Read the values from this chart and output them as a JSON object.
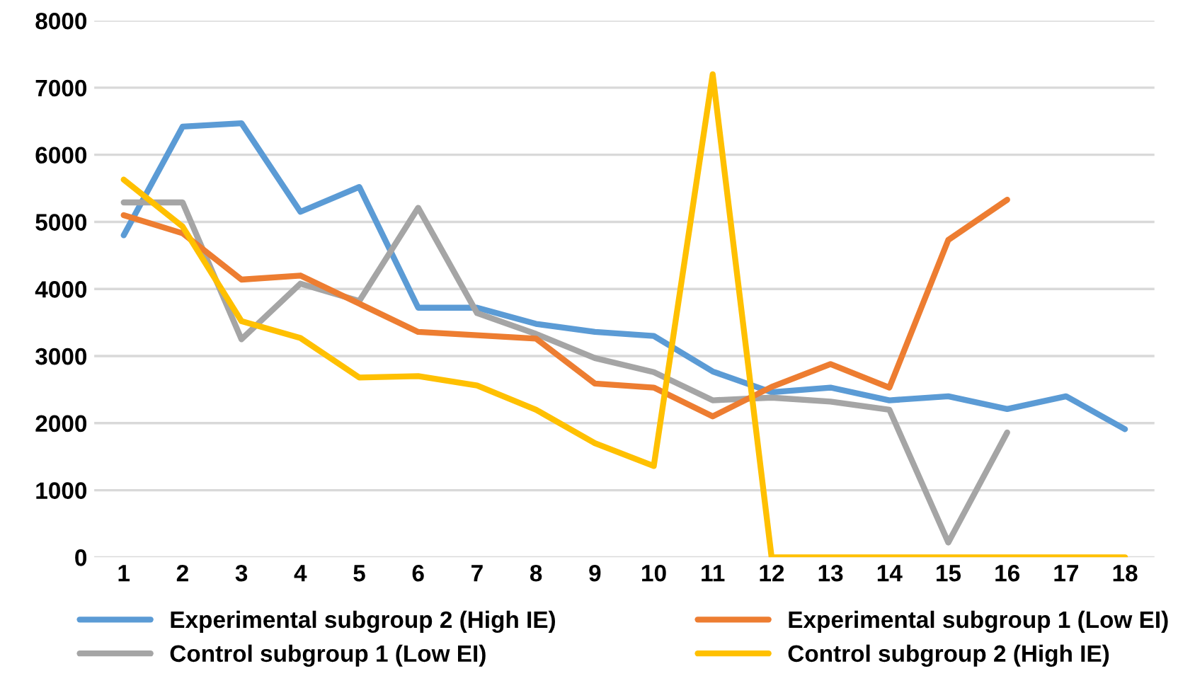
{
  "chart_data": {
    "type": "line",
    "categories": [
      "1",
      "2",
      "3",
      "4",
      "5",
      "6",
      "7",
      "8",
      "9",
      "10",
      "11",
      "12",
      "13",
      "14",
      "15",
      "16",
      "17",
      "18"
    ],
    "series": [
      {
        "name": "Experimental subgroup 2 (High IE)",
        "color": "#5b9bd5",
        "values": [
          4800,
          6420,
          6470,
          5150,
          5520,
          3720,
          3720,
          3480,
          3360,
          3300,
          2770,
          2460,
          2530,
          2340,
          2400,
          2210,
          2400,
          1910
        ]
      },
      {
        "name": "Control subgroup 1 (Low EI)",
        "color": "#a5a5a5",
        "values": [
          5290,
          5290,
          3250,
          4080,
          3820,
          5210,
          3640,
          3330,
          2970,
          2760,
          2340,
          2380,
          2320,
          2200,
          220,
          1860,
          null,
          null
        ]
      },
      {
        "name": "Experimental subgroup 1 (Low EI)",
        "color": "#ed7d31",
        "values": [
          5100,
          4830,
          4140,
          4200,
          3780,
          3360,
          3310,
          3260,
          2590,
          2530,
          2100,
          2540,
          2880,
          2530,
          4730,
          5330,
          null,
          null
        ]
      },
      {
        "name": "Control subgroup 2 (High IE)",
        "color": "#ffc000",
        "values": [
          5630,
          4930,
          3520,
          3270,
          2680,
          2700,
          2560,
          2200,
          1700,
          1360,
          7200,
          0,
          0,
          0,
          0,
          0,
          0,
          0
        ]
      }
    ],
    "ylim": [
      0,
      8000
    ],
    "yticks": [
      0,
      1000,
      2000,
      3000,
      4000,
      5000,
      6000,
      7000,
      8000
    ],
    "grid": "y",
    "legend": "bottom",
    "marker": "none",
    "line_style": "solid"
  }
}
